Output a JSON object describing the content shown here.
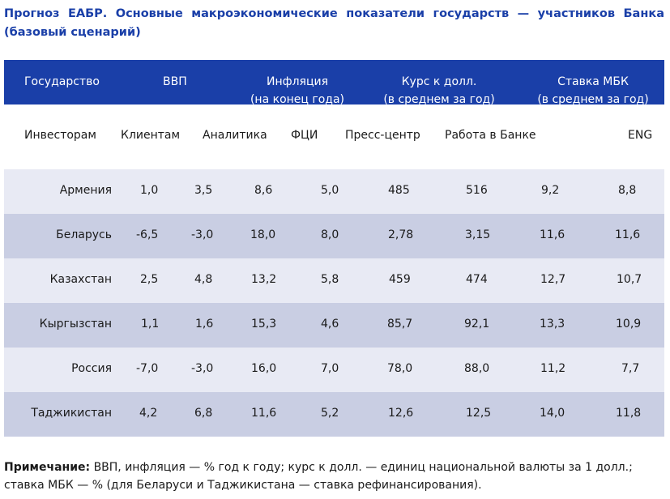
{
  "title": "Прогноз ЕАБР. Основные макроэкономические показатели государств — участников Банка (базовый сценарий)",
  "columns": [
    {
      "label": "Государство",
      "sub": ""
    },
    {
      "label": "ВВП",
      "sub": ""
    },
    {
      "label": "Инфляция",
      "sub": "(на конец года)"
    },
    {
      "label": "Курс к долл.",
      "sub": "(в среднем за год)"
    },
    {
      "label": "Ставка МБК",
      "sub": "(в среднем за год)"
    }
  ],
  "nav": [
    "Инвесторам",
    "Клиентам",
    "Аналитика",
    "ФЦИ",
    "Пресс-центр",
    "Работа в Банке",
    "ENG"
  ],
  "rows": [
    {
      "country": "Армения",
      "v": [
        "1,0",
        "3,5",
        "8,6",
        "5,0",
        "485",
        "516",
        "9,2",
        "8,8"
      ]
    },
    {
      "country": "Беларусь",
      "v": [
        "-6,5",
        "-3,0",
        "18,0",
        "8,0",
        "2,78",
        "3,15",
        "11,6",
        "11,6"
      ]
    },
    {
      "country": "Казахстан",
      "v": [
        "2,5",
        "4,8",
        "13,2",
        "5,8",
        "459",
        "474",
        "12,7",
        "10,7"
      ]
    },
    {
      "country": "Кыргызстан",
      "v": [
        "1,1",
        "1,6",
        "15,3",
        "4,6",
        "85,7",
        "92,1",
        "13,3",
        "10,9"
      ]
    },
    {
      "country": "Россия",
      "v": [
        "-7,0",
        "-3,0",
        "16,0",
        "7,0",
        "78,0",
        "88,0",
        "11,2",
        "7,7"
      ]
    },
    {
      "country": "Таджикистан",
      "v": [
        "4,2",
        "6,8",
        "11,6",
        "5,2",
        "12,6",
        "12,5",
        "14,0",
        "11,8"
      ]
    }
  ],
  "note": {
    "label": "Примечание:",
    "text": " ВВП, инфляция — % год к году; курс к долл. — единиц национальной валюты за 1 долл.; ставка МБК — % (для Беларуси и Таджикистана — ставка рефинансирования)."
  },
  "colors": {
    "header_blue": "#1a3fa8",
    "row_light": "#e8eaf4",
    "row_dark": "#c9cee3"
  }
}
